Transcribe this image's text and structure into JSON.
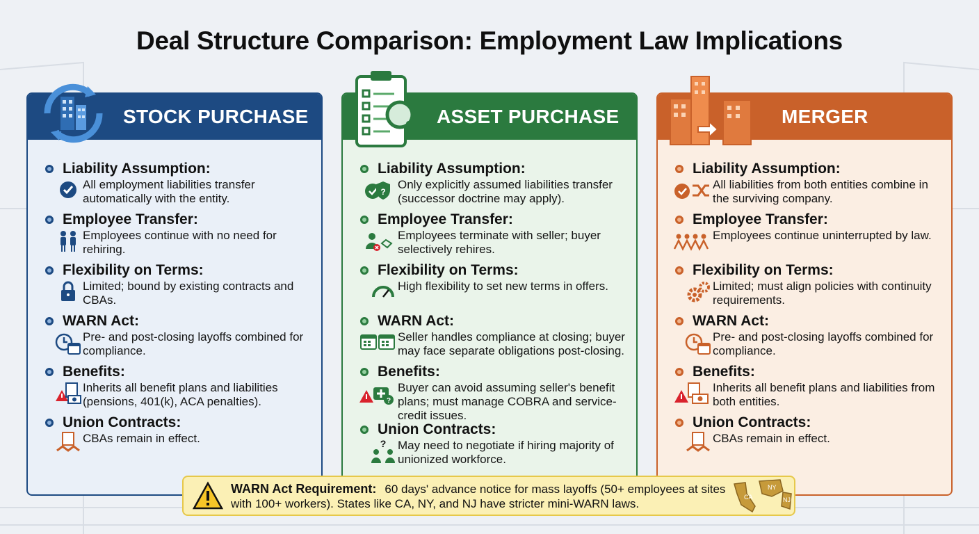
{
  "title": "Deal Structure Comparison: Employment Law Implications",
  "colors": {
    "stock": "#1d4a82",
    "asset": "#2b7a3f",
    "merger": "#c9612a",
    "warning": "#fbf0b5"
  },
  "panels": [
    {
      "heading": "STOCK PURCHASE",
      "header_icon": "building-refresh-icon",
      "items": [
        {
          "title": "Liability Assumption:",
          "desc": "All employment liabilities transfer automatically with the entity.",
          "icon": "check-circle-icon"
        },
        {
          "title": "Employee Transfer:",
          "desc": "Employees continue with no need for rehiring.",
          "icon": "people-icon"
        },
        {
          "title": "Flexibility on Terms:",
          "desc": "Limited; bound by existing contracts and CBAs.",
          "icon": "lock-icon"
        },
        {
          "title": "WARN Act:",
          "desc": "Pre- and post-closing layoffs combined for compliance.",
          "icon": "clock-calendar-icon"
        },
        {
          "title": "Benefits:",
          "desc": "Inherits all benefit plans and liabilities (pensions, 401(k), ACA penalties).",
          "icon": "warning-document-icon"
        },
        {
          "title": "Union Contracts:",
          "desc": "CBAs remain in effect.",
          "icon": "handshake-contract-icon"
        }
      ]
    },
    {
      "heading": "ASSET PURCHASE",
      "header_icon": "clipboard-magnifier-icon",
      "items": [
        {
          "title": "Liability Assumption:",
          "desc": "Only explicitly assumed liabilities transfer (successor doctrine may apply).",
          "icon": "check-shield-icon"
        },
        {
          "title": "Employee Transfer:",
          "desc": "Employees terminate with seller; buyer selectively rehires.",
          "icon": "person-handshake-icon"
        },
        {
          "title": "Flexibility on Terms:",
          "desc": "High flexibility to set new terms in offers.",
          "icon": "gauge-icon"
        },
        {
          "title": "WARN Act:",
          "desc": "Seller handles compliance at closing; buyer may face separate obligations post-closing.",
          "icon": "calendars-icon"
        },
        {
          "title": "Benefits:",
          "desc": "Buyer can avoid assuming seller's benefit plans; must manage COBRA and service-credit issues.",
          "icon": "warning-medkit-icon"
        },
        {
          "title": "Union Contracts:",
          "desc": "May need to negotiate if hiring majority of unionized workforce.",
          "icon": "people-question-icon"
        }
      ]
    },
    {
      "heading": "MERGER",
      "header_icon": "buildings-merge-icon",
      "items": [
        {
          "title": "Liability Assumption:",
          "desc": "All liabilities from both entities combine in the surviving company.",
          "icon": "check-shuffle-icon"
        },
        {
          "title": "Employee Transfer:",
          "desc": "Employees continue uninterrupted by law.",
          "icon": "people-chain-icon"
        },
        {
          "title": "Flexibility on Terms:",
          "desc": "Limited; must align policies with continuity requirements.",
          "icon": "gears-icon"
        },
        {
          "title": "WARN Act:",
          "desc": "Pre- and post-closing layoffs combined for compliance.",
          "icon": "clock-calendar-icon"
        },
        {
          "title": "Benefits:",
          "desc": "Inherits all benefit plans and liabilities from both entities.",
          "icon": "warning-document-icon"
        },
        {
          "title": "Union Contracts:",
          "desc": "CBAs remain in effect.",
          "icon": "handshake-contract-icon"
        }
      ]
    }
  ],
  "warn_box": {
    "label": "WARN Act Requirement:",
    "text": "60 days' advance notice for mass layoffs (50+ employees at sites with 100+ workers). States like CA, NY, and NJ have stricter mini-WARN laws.",
    "icon": "warning-triangle-icon",
    "map_labels": [
      "CA",
      "NY",
      "NJ"
    ]
  }
}
